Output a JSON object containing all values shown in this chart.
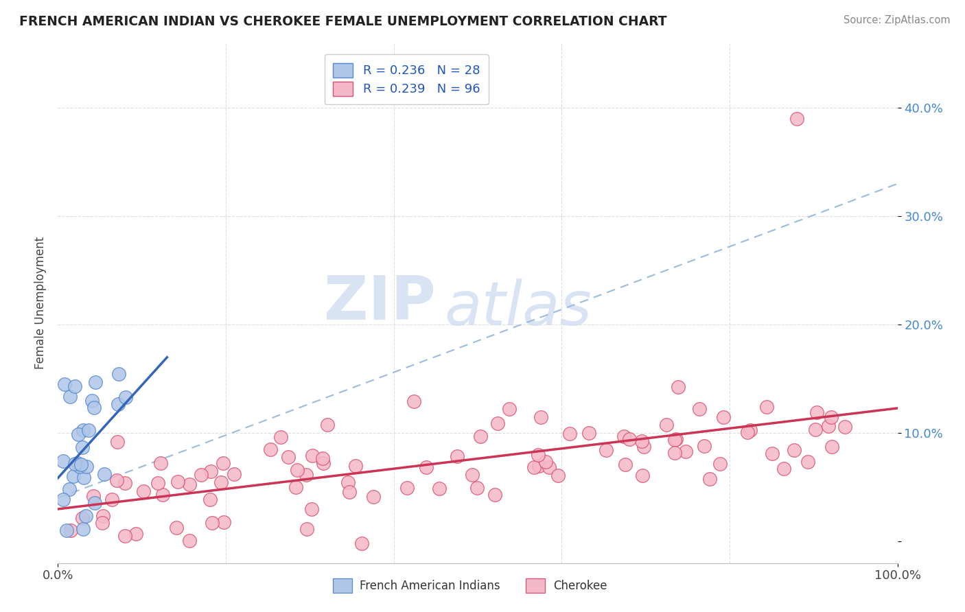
{
  "title": "FRENCH AMERICAN INDIAN VS CHEROKEE FEMALE UNEMPLOYMENT CORRELATION CHART",
  "source_text": "Source: ZipAtlas.com",
  "ylabel": "Female Unemployment",
  "xlim": [
    0.0,
    1.0
  ],
  "ylim": [
    -0.02,
    0.46
  ],
  "xtick_positions": [
    0.0,
    1.0
  ],
  "xticklabels": [
    "0.0%",
    "100.0%"
  ],
  "ytick_positions": [
    0.0,
    0.1,
    0.2,
    0.3,
    0.4
  ],
  "yticklabels": [
    "",
    "10.0%",
    "20.0%",
    "30.0%",
    "40.0%"
  ],
  "legend_line1": "R = 0.236   N = 28",
  "legend_line2": "R = 0.239   N = 96",
  "blue_fill": "#aec6e8",
  "blue_edge": "#5588cc",
  "pink_fill": "#f5b8c8",
  "pink_edge": "#d95070",
  "blue_trend_color": "#3366bb",
  "pink_trend_color": "#cc3355",
  "dash_color": "#99bbdd",
  "watermark_zip": "ZIP",
  "watermark_atlas": "atlas",
  "background_color": "#ffffff",
  "grid_color": "#dddddd",
  "title_color": "#222222",
  "source_color": "#888888",
  "ytick_color": "#4488cc",
  "xtick_color": "#444444",
  "ylabel_color": "#444444"
}
